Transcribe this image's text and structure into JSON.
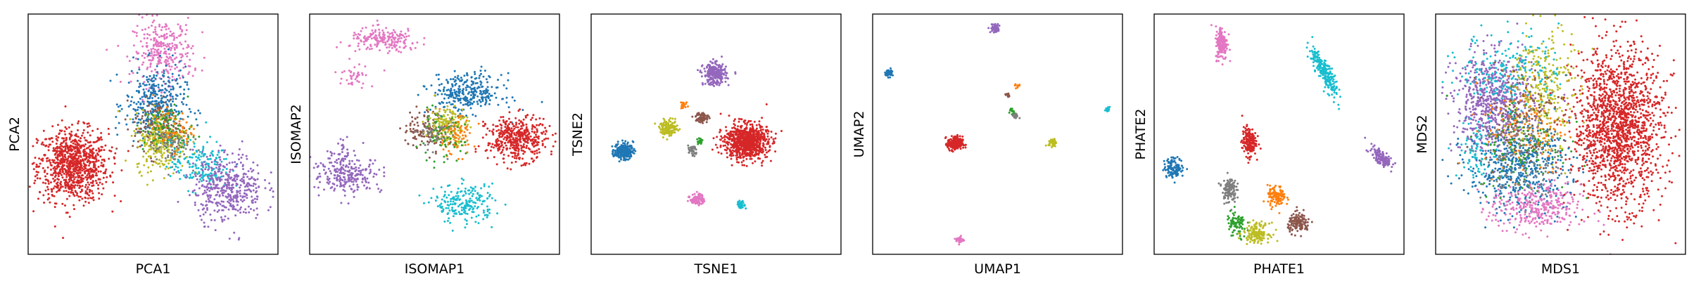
{
  "palette": {
    "blue": "#1f77b4",
    "orange": "#ff7f0e",
    "green": "#2ca02c",
    "red": "#d62728",
    "purple": "#9467bd",
    "brown": "#8c564b",
    "pink": "#e377c2",
    "gray": "#7f7f7f",
    "olive": "#bcbd22",
    "cyan": "#17becf"
  },
  "chart_data": [
    {
      "type": "scatter",
      "xlabel": "PCA1",
      "ylabel": "PCA2",
      "xlim": [
        0,
        100
      ],
      "ylim": [
        0,
        100
      ],
      "grid": false,
      "clusters": [
        {
          "color": "red",
          "cx": 18,
          "cy": 37,
          "sx": 7,
          "sy": 7.5,
          "n": 900
        },
        {
          "color": "pink",
          "cx": 54,
          "cy": 84,
          "sx": 6,
          "sy": 7,
          "n": 300
        },
        {
          "color": "blue",
          "cx": 51,
          "cy": 62,
          "sx": 6,
          "sy": 8,
          "n": 380
        },
        {
          "color": "brown",
          "cx": 52,
          "cy": 53,
          "sx": 5,
          "sy": 6,
          "n": 150
        },
        {
          "color": "olive",
          "cx": 53,
          "cy": 47,
          "sx": 5,
          "sy": 6,
          "n": 260
        },
        {
          "color": "green",
          "cx": 56,
          "cy": 52,
          "sx": 5,
          "sy": 5,
          "n": 90
        },
        {
          "color": "orange",
          "cx": 58,
          "cy": 52,
          "sx": 4,
          "sy": 4,
          "n": 60
        },
        {
          "color": "gray",
          "cx": 57,
          "cy": 45,
          "sx": 4,
          "sy": 4,
          "n": 70
        },
        {
          "color": "cyan",
          "cx": 69,
          "cy": 37,
          "sx": 6,
          "sy": 5,
          "n": 170
        },
        {
          "color": "purple",
          "cx": 80,
          "cy": 28,
          "sx": 7,
          "sy": 7,
          "n": 420
        }
      ]
    },
    {
      "type": "scatter",
      "xlabel": "ISOMAP1",
      "ylabel": "ISOMAP2",
      "xlim": [
        0,
        100
      ],
      "ylim": [
        0,
        100
      ],
      "grid": false,
      "clusters": [
        {
          "color": "pink",
          "cx": 30,
          "cy": 89,
          "sx": 7,
          "sy": 2.5,
          "n": 190
        },
        {
          "color": "pink",
          "cx": 18,
          "cy": 75,
          "sx": 4,
          "sy": 2.5,
          "n": 40
        },
        {
          "color": "blue",
          "cx": 63,
          "cy": 67,
          "sx": 7,
          "sy": 4,
          "n": 300
        },
        {
          "color": "red",
          "cx": 83,
          "cy": 48,
          "sx": 6,
          "sy": 4.5,
          "n": 430
        },
        {
          "color": "brown",
          "cx": 47,
          "cy": 52,
          "sx": 5,
          "sy": 4,
          "n": 120
        },
        {
          "color": "olive",
          "cx": 55,
          "cy": 54,
          "sx": 4,
          "sy": 4,
          "n": 170
        },
        {
          "color": "orange",
          "cx": 58,
          "cy": 49,
          "sx": 4,
          "sy": 4,
          "n": 80
        },
        {
          "color": "green",
          "cx": 52,
          "cy": 48,
          "sx": 5,
          "sy": 5,
          "n": 60
        },
        {
          "color": "gray",
          "cx": 51,
          "cy": 50,
          "sx": 4,
          "sy": 4,
          "n": 40
        },
        {
          "color": "purple",
          "cx": 15,
          "cy": 33,
          "sx": 7,
          "sy": 3.5,
          "n": 230
        },
        {
          "color": "purple",
          "cx": 14,
          "cy": 42,
          "sx": 3,
          "sy": 2.5,
          "n": 40
        },
        {
          "color": "cyan",
          "cx": 62,
          "cy": 21,
          "sx": 6,
          "sy": 4,
          "n": 210
        }
      ]
    },
    {
      "type": "scatter",
      "xlabel": "TSNE1",
      "ylabel": "TSNE2",
      "xlim": [
        0,
        100
      ],
      "ylim": [
        0,
        100
      ],
      "grid": false,
      "clusters": [
        {
          "color": "purple",
          "cx": 49.5,
          "cy": 75,
          "sx": 2.3,
          "sy": 2.2,
          "n": 280
        },
        {
          "color": "orange",
          "cx": 37,
          "cy": 62,
          "sx": 0.8,
          "sy": 0.8,
          "n": 25
        },
        {
          "color": "brown",
          "cx": 44.5,
          "cy": 57,
          "sx": 1.3,
          "sy": 1.1,
          "n": 60
        },
        {
          "color": "olive",
          "cx": 31,
          "cy": 52.5,
          "sx": 1.8,
          "sy": 1.6,
          "n": 140
        },
        {
          "color": "red",
          "cx": 62,
          "cy": 47,
          "sx": 4.3,
          "sy": 3.6,
          "n": 850
        },
        {
          "color": "green",
          "cx": 43.5,
          "cy": 47,
          "sx": 0.8,
          "sy": 0.8,
          "n": 20
        },
        {
          "color": "gray",
          "cx": 40.5,
          "cy": 43,
          "sx": 0.8,
          "sy": 1.0,
          "n": 40
        },
        {
          "color": "blue",
          "cx": 13,
          "cy": 43,
          "sx": 1.9,
          "sy": 1.7,
          "n": 210
        },
        {
          "color": "pink",
          "cx": 42.5,
          "cy": 23,
          "sx": 1.4,
          "sy": 1.2,
          "n": 90
        },
        {
          "color": "cyan",
          "cx": 60,
          "cy": 20.5,
          "sx": 0.8,
          "sy": 0.8,
          "n": 40
        }
      ]
    },
    {
      "type": "scatter",
      "xlabel": "UMAP1",
      "ylabel": "UMAP2",
      "xlim": [
        0,
        100
      ],
      "ylim": [
        0,
        100
      ],
      "grid": false,
      "clusters": [
        {
          "color": "purple",
          "cx": 49,
          "cy": 94,
          "sx": 0.9,
          "sy": 0.9,
          "n": 70
        },
        {
          "color": "blue",
          "cx": 6.5,
          "cy": 75.5,
          "sx": 0.8,
          "sy": 0.8,
          "n": 50
        },
        {
          "color": "orange",
          "cx": 58,
          "cy": 70,
          "sx": 0.5,
          "sy": 0.5,
          "n": 10
        },
        {
          "color": "brown",
          "cx": 54,
          "cy": 66,
          "sx": 0.5,
          "sy": 0.5,
          "n": 10
        },
        {
          "color": "green",
          "cx": 56,
          "cy": 59.5,
          "sx": 0.6,
          "sy": 0.6,
          "n": 15
        },
        {
          "color": "gray",
          "cx": 57,
          "cy": 57.5,
          "sx": 0.6,
          "sy": 0.6,
          "n": 25
        },
        {
          "color": "cyan",
          "cx": 94,
          "cy": 60,
          "sx": 0.6,
          "sy": 0.6,
          "n": 15
        },
        {
          "color": "red",
          "cx": 33,
          "cy": 46,
          "sx": 1.5,
          "sy": 1.5,
          "n": 200
        },
        {
          "color": "olive",
          "cx": 72,
          "cy": 46.5,
          "sx": 0.8,
          "sy": 0.8,
          "n": 40
        },
        {
          "color": "pink",
          "cx": 35,
          "cy": 6,
          "sx": 0.8,
          "sy": 0.8,
          "n": 30
        }
      ]
    },
    {
      "type": "scatter",
      "xlabel": "PHATE1",
      "ylabel": "PHATE2",
      "xlim": [
        0,
        100
      ],
      "ylim": [
        0,
        100
      ],
      "grid": false,
      "clusters": [
        {
          "color": "pink",
          "cx": 27,
          "cy": 88,
          "sx": 1.2,
          "sy": 3.5,
          "n": 170
        },
        {
          "color": "cyan",
          "cx": 68,
          "cy": 76,
          "sx": 1.3,
          "sy": 5.5,
          "n": 220,
          "rot": 0.45
        },
        {
          "color": "red",
          "cx": 38,
          "cy": 47,
          "sx": 1.4,
          "sy": 3.0,
          "n": 170
        },
        {
          "color": "purple",
          "cx": 91,
          "cy": 40,
          "sx": 1.2,
          "sy": 3.0,
          "n": 130,
          "rot": 0.7
        },
        {
          "color": "blue",
          "cx": 8,
          "cy": 36,
          "sx": 2.0,
          "sy": 2.0,
          "n": 120
        },
        {
          "color": "gray",
          "cx": 30,
          "cy": 27,
          "sx": 1.4,
          "sy": 2.8,
          "n": 120
        },
        {
          "color": "orange",
          "cx": 49,
          "cy": 24,
          "sx": 1.8,
          "sy": 2.2,
          "n": 110
        },
        {
          "color": "brown",
          "cx": 58,
          "cy": 13,
          "sx": 2.2,
          "sy": 2.0,
          "n": 130
        },
        {
          "color": "green",
          "cx": 33,
          "cy": 12,
          "sx": 2.0,
          "sy": 3.0,
          "n": 80
        },
        {
          "color": "olive",
          "cx": 41,
          "cy": 9,
          "sx": 2.6,
          "sy": 2.0,
          "n": 150
        }
      ]
    },
    {
      "type": "scatter",
      "xlabel": "MDS1",
      "ylabel": "MDS2",
      "xlim": [
        0,
        100
      ],
      "ylim": [
        0,
        100
      ],
      "grid": false,
      "clusters": [
        {
          "color": "red",
          "cx": 73,
          "cy": 53,
          "sx": 9,
          "sy": 16,
          "n": 1600
        },
        {
          "color": "purple",
          "cx": 23,
          "cy": 63,
          "sx": 8,
          "sy": 10,
          "n": 700
        },
        {
          "color": "olive",
          "cx": 43,
          "cy": 70,
          "sx": 6,
          "sy": 13,
          "n": 300
        },
        {
          "color": "blue",
          "cx": 33,
          "cy": 36,
          "sx": 10,
          "sy": 9,
          "n": 550
        },
        {
          "color": "cyan",
          "cx": 30,
          "cy": 77,
          "sx": 10,
          "sy": 8,
          "n": 200
        },
        {
          "color": "cyan",
          "cx": 17,
          "cy": 43,
          "sx": 4,
          "sy": 6,
          "n": 80
        },
        {
          "color": "pink",
          "cx": 40,
          "cy": 19,
          "sx": 9,
          "sy": 5,
          "n": 320
        },
        {
          "color": "orange",
          "cx": 36,
          "cy": 53,
          "sx": 8,
          "sy": 10,
          "n": 150
        },
        {
          "color": "green",
          "cx": 35,
          "cy": 45,
          "sx": 9,
          "sy": 10,
          "n": 120
        },
        {
          "color": "brown",
          "cx": 35,
          "cy": 58,
          "sx": 8,
          "sy": 10,
          "n": 110
        },
        {
          "color": "gray",
          "cx": 34,
          "cy": 40,
          "sx": 8,
          "sy": 10,
          "n": 110
        }
      ]
    }
  ]
}
